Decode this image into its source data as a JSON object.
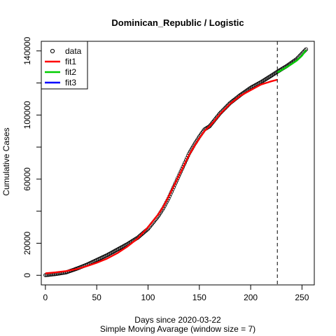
{
  "chart_data": {
    "type": "scatter",
    "title": "Dominican_Republic / Logistic",
    "xlabel": "Days since 2020-03-22",
    "xlabel2": "Simple Moving Avarage (window size = 7)",
    "ylabel": "Cumulative Cases",
    "xlim": [
      -4,
      262
    ],
    "ylim": [
      -6000,
      146000
    ],
    "xticks": [
      0,
      50,
      100,
      150,
      200,
      250
    ],
    "yticks": [
      0,
      20000,
      40000,
      60000,
      80000,
      100000,
      120000,
      140000
    ],
    "yticks_labeled": [
      0,
      20000,
      60000,
      100000,
      140000
    ],
    "vline_x": 226,
    "legend": {
      "placement": "top-left",
      "entries": [
        {
          "label": "data",
          "kind": "point",
          "color": "#000000"
        },
        {
          "label": "fit1",
          "kind": "line",
          "color": "#ff0000"
        },
        {
          "label": "fit2",
          "kind": "line",
          "color": "#00cd00"
        },
        {
          "label": "fit3",
          "kind": "line",
          "color": "#0000ff"
        }
      ]
    },
    "data_anchors": {
      "x": [
        0,
        10,
        20,
        30,
        40,
        50,
        60,
        70,
        80,
        90,
        100,
        110,
        115,
        120,
        125,
        130,
        135,
        140,
        145,
        150,
        155,
        160,
        165,
        170,
        180,
        190,
        200,
        210,
        220,
        226,
        235,
        245,
        254
      ],
      "y": [
        100,
        800,
        1800,
        4000,
        6500,
        9500,
        12500,
        16000,
        19500,
        23500,
        29000,
        37000,
        42000,
        48000,
        55000,
        62000,
        69000,
        76000,
        81500,
        86500,
        91000,
        93000,
        97000,
        101000,
        107500,
        112500,
        117000,
        120500,
        124500,
        127000,
        130500,
        135000,
        141000
      ]
    },
    "series": [
      {
        "name": "fit1",
        "color": "#ff0000",
        "x": [
          0,
          10,
          20,
          30,
          40,
          50,
          60,
          70,
          80,
          90,
          100,
          110,
          115,
          120,
          125,
          130,
          135,
          140,
          145,
          150,
          155,
          160,
          165,
          170,
          180,
          190,
          200,
          210,
          220,
          226
        ],
        "y": [
          1200,
          1800,
          2600,
          3800,
          5600,
          7800,
          10400,
          13800,
          18000,
          23000,
          30000,
          38000,
          43000,
          49000,
          55500,
          62000,
          68500,
          75000,
          80500,
          85500,
          90000,
          93000,
          96500,
          100500,
          107000,
          112000,
          115500,
          119000,
          121000,
          122000
        ]
      },
      {
        "name": "fit2",
        "color": "#00cd00",
        "x": [
          226,
          230,
          235,
          240,
          245,
          250,
          254
        ],
        "y": [
          126500,
          128000,
          129800,
          131800,
          134000,
          137000,
          140500
        ]
      }
    ]
  }
}
